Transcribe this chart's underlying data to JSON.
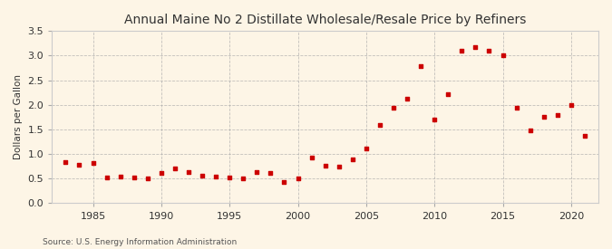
{
  "title": "Annual Maine No 2 Distillate Wholesale/Resale Price by Refiners",
  "ylabel": "Dollars per Gallon",
  "source": "Source: U.S. Energy Information Administration",
  "background_color": "#fdf5e6",
  "marker_color": "#cc0000",
  "years": [
    1983,
    1984,
    1985,
    1986,
    1987,
    1988,
    1989,
    1990,
    1991,
    1992,
    1993,
    1994,
    1995,
    1996,
    1997,
    1998,
    1999,
    2000,
    2001,
    2002,
    2003,
    2004,
    2005,
    2006,
    2007,
    2008,
    2009,
    2010,
    2011,
    2012,
    2013,
    2014,
    2015,
    2016,
    2017,
    2018,
    2019,
    2020,
    2021
  ],
  "values": [
    0.83,
    0.78,
    0.81,
    0.53,
    0.55,
    0.53,
    0.51,
    0.62,
    0.7,
    0.64,
    0.57,
    0.55,
    0.53,
    0.51,
    0.64,
    0.62,
    0.44,
    0.5,
    0.92,
    0.77,
    0.75,
    0.9,
    1.12,
    1.6,
    1.95,
    2.12,
    2.78,
    1.7,
    2.22,
    3.1,
    3.18,
    3.1,
    3.0,
    1.95,
    1.48,
    1.75,
    1.8,
    2.0,
    1.38
  ],
  "ylim": [
    0.0,
    3.5
  ],
  "yticks": [
    0.0,
    0.5,
    1.0,
    1.5,
    2.0,
    2.5,
    3.0,
    3.5
  ],
  "xlim": [
    1982,
    2022
  ],
  "xticks": [
    1985,
    1990,
    1995,
    2000,
    2005,
    2010,
    2015,
    2020
  ]
}
